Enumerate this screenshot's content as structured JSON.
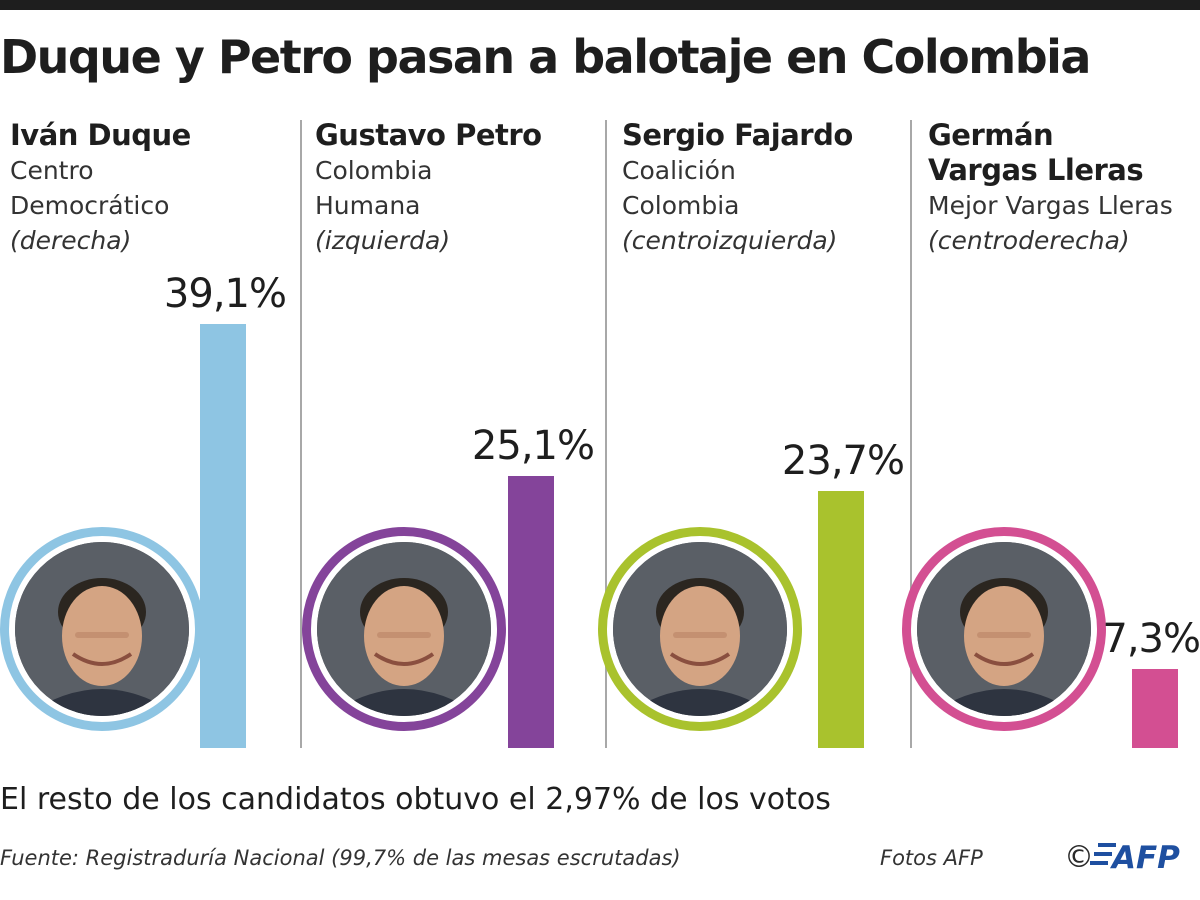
{
  "title": "Duque y Petro pasan a balotaje en Colombia",
  "note": "El resto de los candidatos obtuvo el 2,97% de los votos",
  "source": "Fuente: Registraduría Nacional (99,7% de las mesas escrutadas)",
  "photo_credit": "Fotos AFP",
  "logo": {
    "symbol": "©",
    "text": "AFP"
  },
  "chart_data": {
    "type": "bar",
    "categories": [
      "Iván Duque",
      "Gustavo Petro",
      "Sergio Fajardo",
      "Germán Vargas Lleras"
    ],
    "values": [
      39.1,
      25.1,
      23.7,
      7.3
    ],
    "value_labels": [
      "39,1%",
      "25,1%",
      "23,7%",
      "7,3%"
    ],
    "ylim": [
      0,
      39.1
    ],
    "grid": false,
    "title": "Duque y Petro pasan a balotaje en Colombia"
  },
  "candidates": [
    {
      "name_lines": [
        "Iván Duque"
      ],
      "party_lines": [
        "Centro",
        "Democrático"
      ],
      "leaning": "(derecha)",
      "percent_label": "39,1%",
      "color": "#8ec5e3",
      "photo_icon": "portrait-photo"
    },
    {
      "name_lines": [
        "Gustavo Petro"
      ],
      "party_lines": [
        "Colombia",
        "Humana"
      ],
      "leaning": "(izquierda)",
      "percent_label": "25,1%",
      "color": "#84449a",
      "photo_icon": "portrait-photo"
    },
    {
      "name_lines": [
        "Sergio Fajardo"
      ],
      "party_lines": [
        "Coalición",
        "Colombia"
      ],
      "leaning": "(centroizquierda)",
      "percent_label": "23,7%",
      "color": "#a9c22d",
      "photo_icon": "portrait-photo"
    },
    {
      "name_lines": [
        "Germán",
        "Vargas Lleras"
      ],
      "party_lines": [
        "Mejor Vargas Lleras"
      ],
      "leaning": "(centroderecha)",
      "percent_label": "7,3%",
      "color": "#d34f92",
      "photo_icon": "portrait-photo"
    }
  ]
}
